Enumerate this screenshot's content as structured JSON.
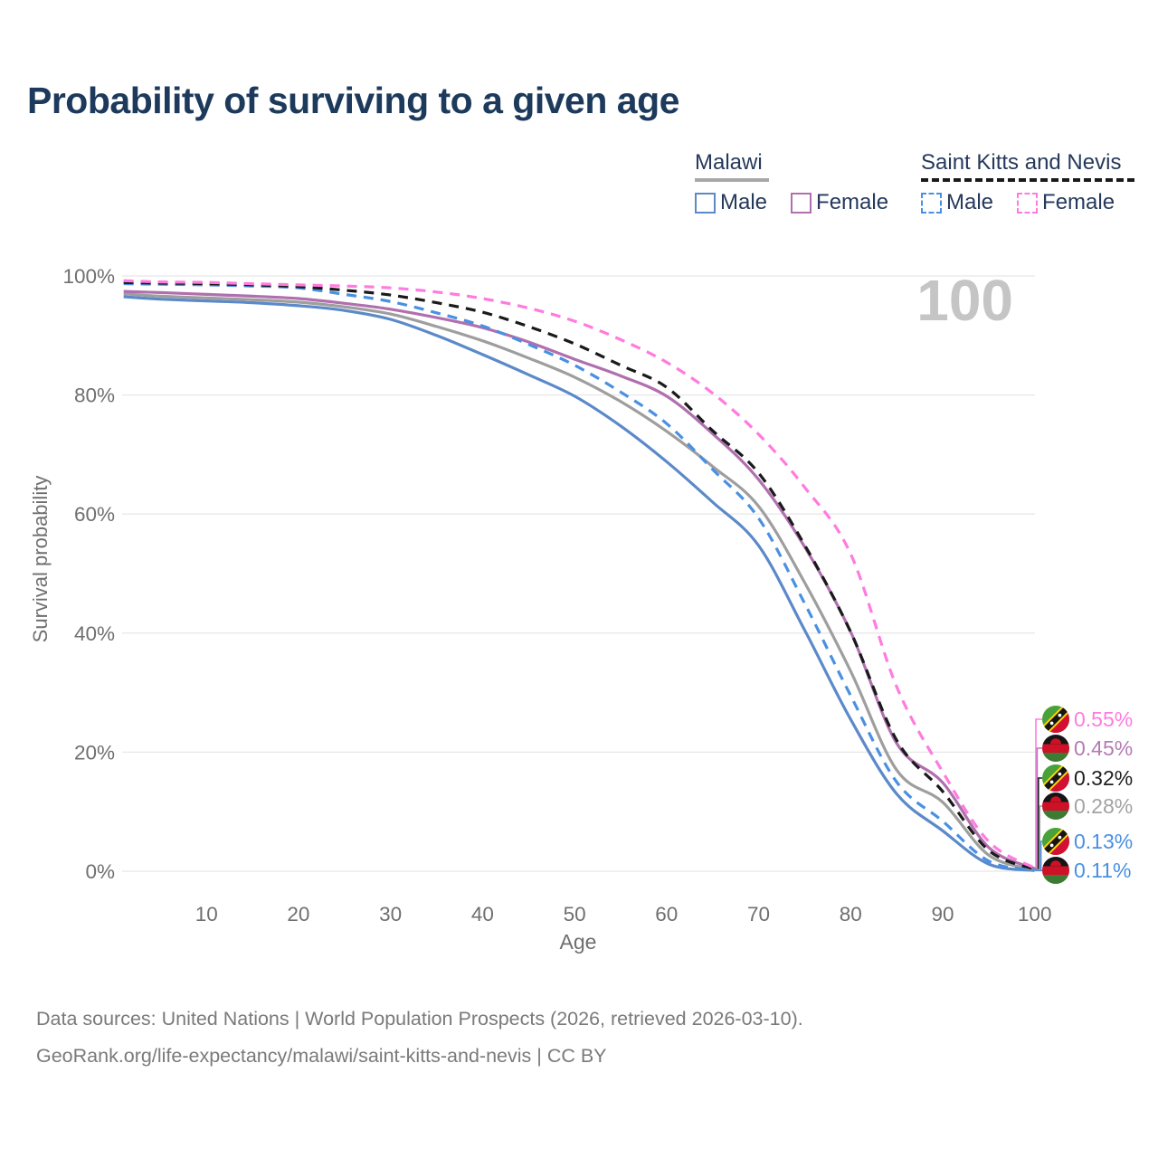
{
  "title": "Probability of surviving to a given age",
  "watermark": "100",
  "colors": {
    "title": "#1d3a5c",
    "legend_text": "#25395c",
    "axis_text": "#6f6f6f",
    "grid": "#e8e8e8",
    "watermark": "#c5c5c5",
    "footer_text": "#7a7a7a",
    "background": "#ffffff"
  },
  "legend": {
    "groups": [
      {
        "country": "Malawi",
        "line_style": "solid",
        "underline_color": "#a8a8a8",
        "items": [
          {
            "label": "Male",
            "color": "#5b89c9"
          },
          {
            "label": "Female",
            "color": "#b06fae"
          }
        ]
      },
      {
        "country": "Saint Kitts and Nevis",
        "line_style": "dashed",
        "underline_color": "#1a1a1a",
        "items": [
          {
            "label": "Male",
            "color": "#4a90e2"
          },
          {
            "label": "Female",
            "color": "#ff7bdf"
          }
        ]
      }
    ]
  },
  "chart_data": {
    "type": "line",
    "title": "Probability of surviving to a given age",
    "xlabel": "Age",
    "ylabel": "Survival probability",
    "xlim": [
      0,
      100
    ],
    "ylim": [
      0,
      100
    ],
    "grid": "horizontal",
    "legend_position": "top-right",
    "x_ticks": [
      10,
      20,
      30,
      40,
      50,
      60,
      70,
      80,
      90,
      100
    ],
    "y_ticks": [
      {
        "value": 0,
        "label": "0%"
      },
      {
        "value": 20,
        "label": "20%"
      },
      {
        "value": 40,
        "label": "40%"
      },
      {
        "value": 60,
        "label": "60%"
      },
      {
        "value": 80,
        "label": "80%"
      },
      {
        "value": 100,
        "label": "100%"
      }
    ],
    "x": [
      1,
      5,
      10,
      15,
      20,
      25,
      30,
      35,
      40,
      45,
      50,
      55,
      60,
      65,
      70,
      75,
      80,
      85,
      90,
      95,
      100
    ],
    "series": [
      {
        "name": "Malawi — Male",
        "country": "Malawi",
        "sex": "Male",
        "style": "solid",
        "color": "#5b89c9",
        "end_label": "0.11%",
        "end_label_color": "#4a90e2",
        "flag": "malawi",
        "values": [
          96.5,
          96.1,
          95.8,
          95.5,
          95.0,
          94.2,
          92.7,
          90.0,
          86.8,
          83.4,
          79.8,
          74.8,
          68.8,
          62.0,
          54.7,
          40.5,
          25.5,
          13.0,
          6.8,
          1.2,
          0.11
        ]
      },
      {
        "name": "Malawi — Total",
        "country": "Malawi",
        "sex": "Total",
        "style": "solid",
        "color": "#9e9e9e",
        "end_label": "0.28%",
        "end_label_color": "#a3a3a3",
        "flag": "malawi",
        "values": [
          97.0,
          96.6,
          96.3,
          96.0,
          95.6,
          94.8,
          93.6,
          91.5,
          89.1,
          86.2,
          83.0,
          78.9,
          73.9,
          68.0,
          61.3,
          48.5,
          33.6,
          17.0,
          11.6,
          2.7,
          0.28
        ]
      },
      {
        "name": "Malawi — Female",
        "country": "Malawi",
        "sex": "Female",
        "style": "solid",
        "color": "#b06fae",
        "end_label": "0.45%",
        "end_label_color": "#b57ab5",
        "flag": "malawi",
        "values": [
          97.4,
          97.2,
          96.9,
          96.6,
          96.2,
          95.4,
          94.4,
          93.0,
          91.3,
          88.9,
          86.0,
          83.2,
          79.8,
          73.5,
          65.8,
          54.5,
          40.2,
          21.5,
          14.9,
          4.0,
          0.45
        ]
      },
      {
        "name": "Saint Kitts and Nevis — Male",
        "country": "Saint Kitts and Nevis",
        "sex": "Male",
        "style": "dashed",
        "color": "#4a90e2",
        "end_label": "0.13%",
        "end_label_color": "#4a90e2",
        "flag": "saint-kitts-and-nevis",
        "values": [
          98.7,
          98.6,
          98.5,
          98.3,
          98.0,
          96.9,
          95.7,
          93.8,
          91.6,
          88.5,
          85.0,
          80.5,
          75.2,
          67.5,
          59.3,
          45.0,
          29.5,
          15.0,
          8.4,
          1.7,
          0.13
        ]
      },
      {
        "name": "Saint Kitts and Nevis — Total",
        "country": "Saint Kitts and Nevis",
        "sex": "Total",
        "style": "dashed",
        "color": "#1a1a1a",
        "end_label": "0.32%",
        "end_label_color": "#1f1f1f",
        "flag": "saint-kitts-and-nevis",
        "values": [
          98.9,
          98.8,
          98.7,
          98.5,
          98.2,
          97.6,
          96.8,
          95.5,
          93.9,
          91.5,
          88.6,
          85.0,
          81.3,
          74.0,
          66.9,
          54.8,
          40.2,
          22.0,
          13.4,
          3.5,
          0.32
        ]
      },
      {
        "name": "Saint Kitts and Nevis — Female",
        "country": "Saint Kitts and Nevis",
        "sex": "Female",
        "style": "dashed",
        "color": "#ff7bdf",
        "end_label": "0.55%",
        "end_label_color": "#ff7bdf",
        "flag": "saint-kitts-and-nevis",
        "values": [
          99.2,
          99.0,
          98.9,
          98.7,
          98.5,
          98.3,
          98.0,
          97.3,
          96.2,
          94.6,
          92.4,
          89.3,
          85.5,
          80.3,
          73.4,
          64.5,
          53.3,
          31.0,
          16.7,
          5.0,
          0.55
        ]
      }
    ]
  },
  "footer": {
    "line1": "Data sources: United Nations | World Population Prospects (2026, retrieved 2026-03-10).",
    "line2": "GeoRank.org/life-expectancy/malawi/saint-kitts-and-nevis | CC BY"
  }
}
